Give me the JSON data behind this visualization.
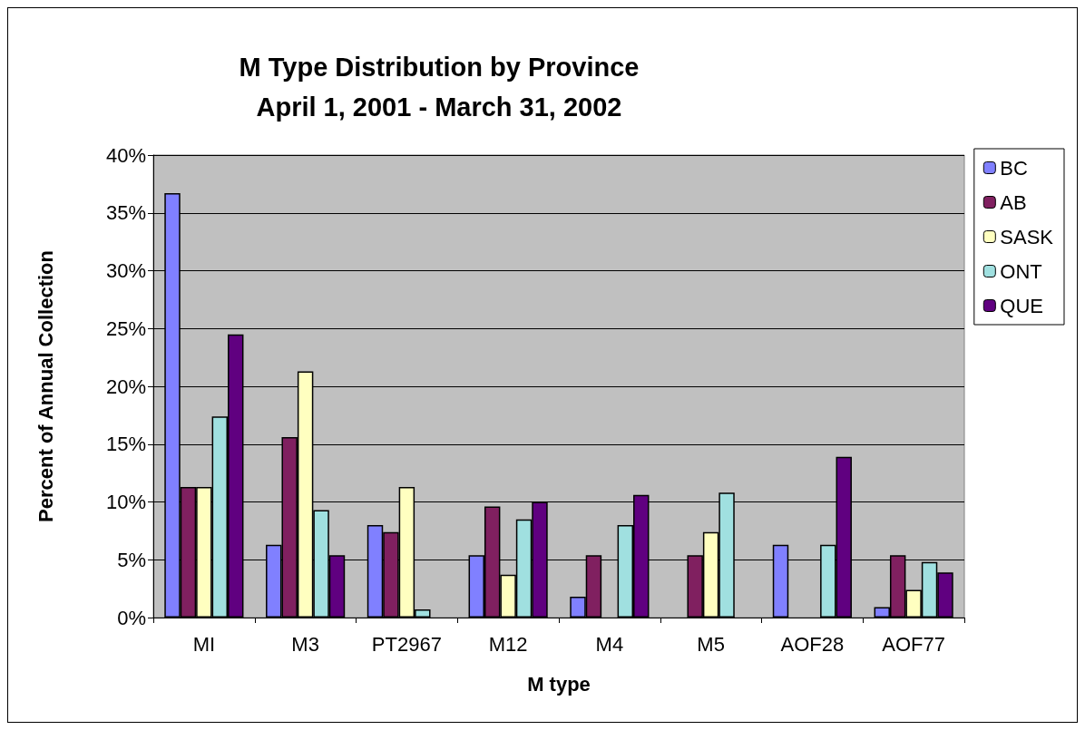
{
  "chart_data": {
    "type": "bar",
    "title": "M Type Distribution by Province\nApril 1, 2001 - March 31, 2002",
    "xlabel": "M type",
    "ylabel": "Percent of Annual Collection",
    "categories": [
      "MI",
      "M3",
      "PT2967",
      "M12",
      "M4",
      "M5",
      "AOF28",
      "AOF77"
    ],
    "series": [
      {
        "name": "BC",
        "color": "#8080ff",
        "values": [
          36.7,
          6.3,
          8.0,
          5.4,
          1.8,
          0,
          6.3,
          0.9
        ]
      },
      {
        "name": "AB",
        "color": "#802060",
        "values": [
          11.3,
          15.6,
          7.4,
          9.6,
          5.4,
          5.4,
          0,
          5.4
        ]
      },
      {
        "name": "SASK",
        "color": "#ffffc0",
        "values": [
          11.3,
          21.3,
          11.3,
          3.7,
          0,
          7.4,
          0,
          2.4
        ]
      },
      {
        "name": "ONT",
        "color": "#a0e0e0",
        "values": [
          17.4,
          9.3,
          0.7,
          8.5,
          8.0,
          10.8,
          6.3,
          4.8
        ]
      },
      {
        "name": "QUE",
        "color": "#600080",
        "values": [
          24.5,
          5.4,
          0,
          10.0,
          10.6,
          0,
          13.9,
          3.9
        ]
      }
    ],
    "ylim": [
      0,
      40
    ],
    "yticks": [
      {
        "value": 0,
        "label": "0%"
      },
      {
        "value": 5,
        "label": "5%"
      },
      {
        "value": 10,
        "label": "10%"
      },
      {
        "value": 15,
        "label": "15%"
      },
      {
        "value": 20,
        "label": "20%"
      },
      {
        "value": 25,
        "label": "25%"
      },
      {
        "value": 30,
        "label": "30%"
      },
      {
        "value": 35,
        "label": "35%"
      },
      {
        "value": 40,
        "label": "40%"
      }
    ],
    "grid": "y",
    "legend": "right"
  }
}
